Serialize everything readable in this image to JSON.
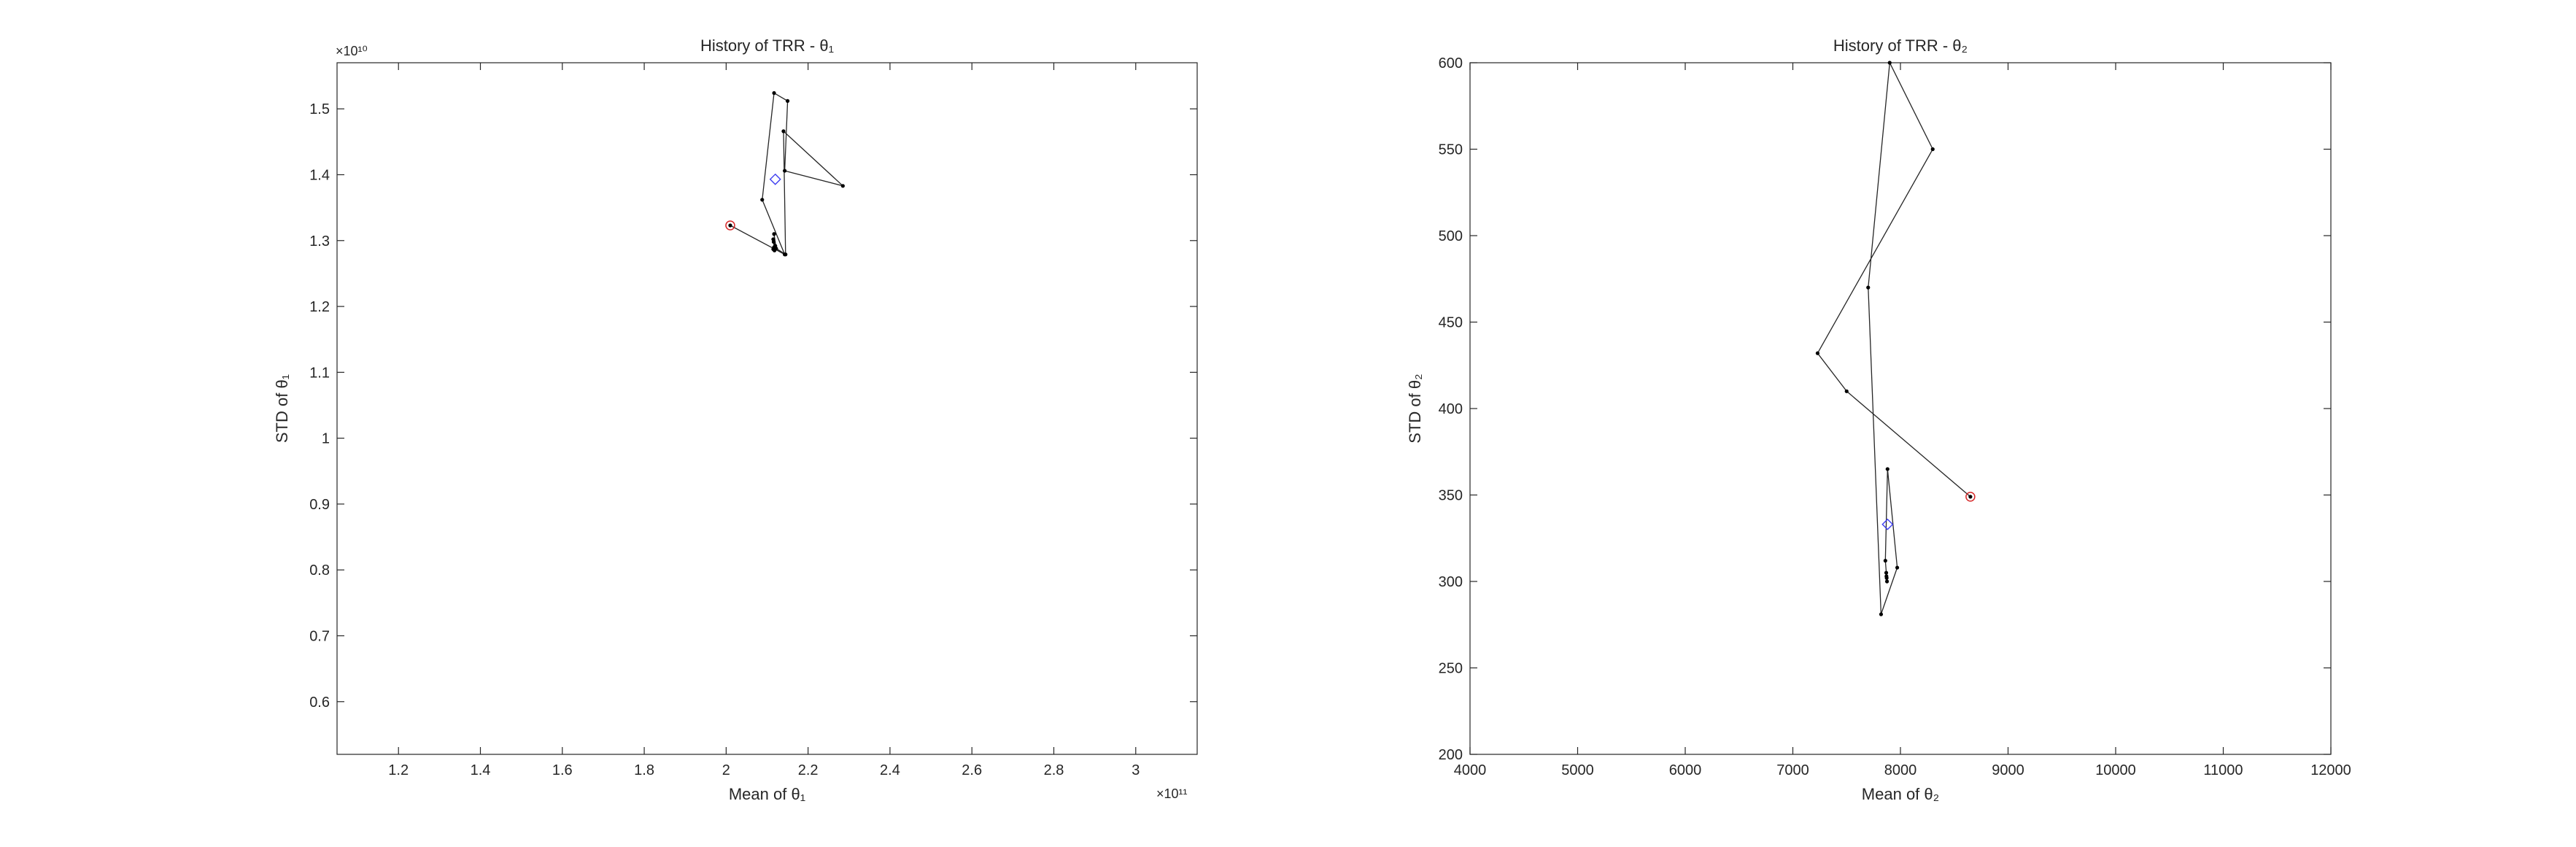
{
  "chart_data": [
    {
      "type": "line",
      "title": "History of TRR - θ₁",
      "xlabel": "Mean of θ₁",
      "ylabel": "STD of θ₁",
      "x_exponent": "×10¹¹",
      "y_exponent": "×10¹⁰",
      "xlim": [
        1.05,
        3.15
      ],
      "ylim": [
        0.52,
        1.57
      ],
      "xticks": [
        1.2,
        1.4,
        1.6,
        1.8,
        2.0,
        2.2,
        2.4,
        2.6,
        2.8,
        3.0
      ],
      "xtick_labels": [
        "1.2",
        "1.4",
        "1.6",
        "1.8",
        "2",
        "2.2",
        "2.4",
        "2.6",
        "2.8",
        "3"
      ],
      "yticks": [
        0.6,
        0.7,
        0.8,
        0.9,
        1.0,
        1.1,
        1.2,
        1.3,
        1.4,
        1.5
      ],
      "ytick_labels": [
        "0.6",
        "0.7",
        "0.8",
        "0.9",
        "1",
        "1.1",
        "1.2",
        "1.3",
        "1.4",
        "1.5"
      ],
      "grid": false,
      "series": [
        {
          "x": [
            2.01,
            2.143,
            2.088,
            2.117,
            2.15,
            2.143,
            2.285,
            2.14,
            2.145,
            2.122,
            2.117,
            2.12,
            2.115,
            2.118,
            2.116,
            2.117,
            2.115,
            2.116
          ],
          "y": [
            1.323,
            1.279,
            1.362,
            1.524,
            1.512,
            1.406,
            1.383,
            1.466,
            1.279,
            1.288,
            1.31,
            1.292,
            1.302,
            1.285,
            1.298,
            1.29,
            1.287,
            1.288
          ]
        }
      ],
      "start_marker": {
        "x": 2.01,
        "y": 1.323,
        "color": "#d62728"
      },
      "mean_marker": {
        "x": 2.12,
        "y": 1.393,
        "color": "#3d3df0"
      }
    },
    {
      "type": "line",
      "title": "History of TRR - θ₂",
      "xlabel": "Mean of θ₂",
      "ylabel": "STD of θ₂",
      "xlim": [
        4000,
        12000
      ],
      "ylim": [
        200,
        600
      ],
      "xticks": [
        4000,
        5000,
        6000,
        7000,
        8000,
        9000,
        10000,
        11000,
        12000
      ],
      "xtick_labels": [
        "4000",
        "5000",
        "6000",
        "7000",
        "8000",
        "9000",
        "10000",
        "11000",
        "12000"
      ],
      "yticks": [
        200,
        250,
        300,
        350,
        400,
        450,
        500,
        550,
        600
      ],
      "ytick_labels": [
        "200",
        "250",
        "300",
        "350",
        "400",
        "450",
        "500",
        "550",
        "600"
      ],
      "grid": false,
      "series": [
        {
          "x": [
            8650,
            7500,
            7230,
            8300,
            7900,
            7700,
            7820,
            7970,
            7880,
            7860,
            7875,
            7868,
            7872,
            7870
          ],
          "y": [
            349,
            410,
            432,
            550,
            600,
            470,
            281,
            308,
            365,
            312,
            300,
            305,
            302,
            303
          ]
        }
      ],
      "start_marker": {
        "x": 8650,
        "y": 349,
        "color": "#d62728"
      },
      "mean_marker": {
        "x": 7880,
        "y": 333,
        "color": "#3d3df0"
      }
    }
  ]
}
